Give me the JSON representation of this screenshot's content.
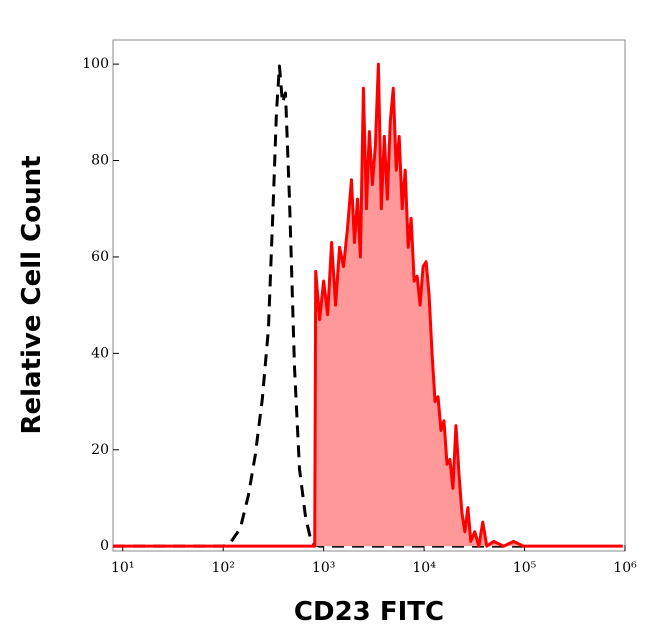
{
  "chart_data": {
    "type": "histogram-overlay",
    "xlabel": "CD23 FITC",
    "ylabel": "Relative Cell Count",
    "xscale": "log",
    "xlim": [
      8,
      1000000
    ],
    "ylim": [
      -1,
      105
    ],
    "xticks": [
      {
        "value": 10,
        "label": "10¹"
      },
      {
        "value": 100,
        "label": "10²"
      },
      {
        "value": 1000,
        "label": "10³"
      },
      {
        "value": 10000,
        "label": "10⁴"
      },
      {
        "value": 100000,
        "label": "10⁵"
      },
      {
        "value": 1000000,
        "label": "10⁶"
      }
    ],
    "yticks": [
      0,
      20,
      40,
      60,
      80,
      100
    ],
    "series": [
      {
        "color": "#000000",
        "dash": true,
        "fill": false,
        "x": [
          8,
          100,
          117,
          148,
          178,
          209,
          245,
          282,
          316,
          339,
          363,
          389,
          417,
          457,
          513,
          575,
          661,
          759,
          912,
          100000
        ],
        "values": [
          0,
          0,
          0.6,
          3.7,
          10.5,
          19,
          30.5,
          45,
          72,
          90,
          99.6,
          92,
          94,
          72,
          37,
          16,
          6,
          0.6,
          0,
          0
        ]
      },
      {
        "color": "#ff0000",
        "fill_color": "#ff9999",
        "dash": false,
        "fill": true,
        "x": [
          8,
          815,
          834,
          912,
          1000,
          1096,
          1200,
          1315,
          1440,
          1578,
          1729,
          1892,
          2027,
          2172,
          2323,
          2489,
          2667,
          2851,
          3055,
          3273,
          3508,
          3750,
          4018,
          4305,
          4603,
          4932,
          5284,
          5649,
          6053,
          6486,
          6950,
          7430,
          7962,
          8531,
          9120,
          9772,
          10470,
          11220,
          11995,
          12850,
          13770,
          14720,
          15780,
          16900,
          18070,
          19360,
          20750,
          22230,
          23770,
          25470,
          27290,
          29170,
          31990,
          35070,
          38370,
          42070,
          49320,
          61940,
          77800,
          97700,
          950000
        ],
        "values": [
          0,
          0,
          57,
          47,
          55,
          48,
          63,
          50,
          62,
          58,
          66,
          76,
          63,
          72,
          60,
          95,
          70,
          86,
          75,
          83,
          100,
          70,
          85,
          72,
          88,
          95,
          78,
          85,
          70,
          78,
          62,
          68,
          55,
          56,
          50,
          58,
          59,
          52,
          40,
          30,
          31,
          24,
          26,
          17,
          18,
          12,
          25,
          15,
          7,
          3,
          8,
          1,
          3,
          0,
          5,
          0,
          1,
          0,
          1,
          0,
          0
        ]
      }
    ]
  }
}
